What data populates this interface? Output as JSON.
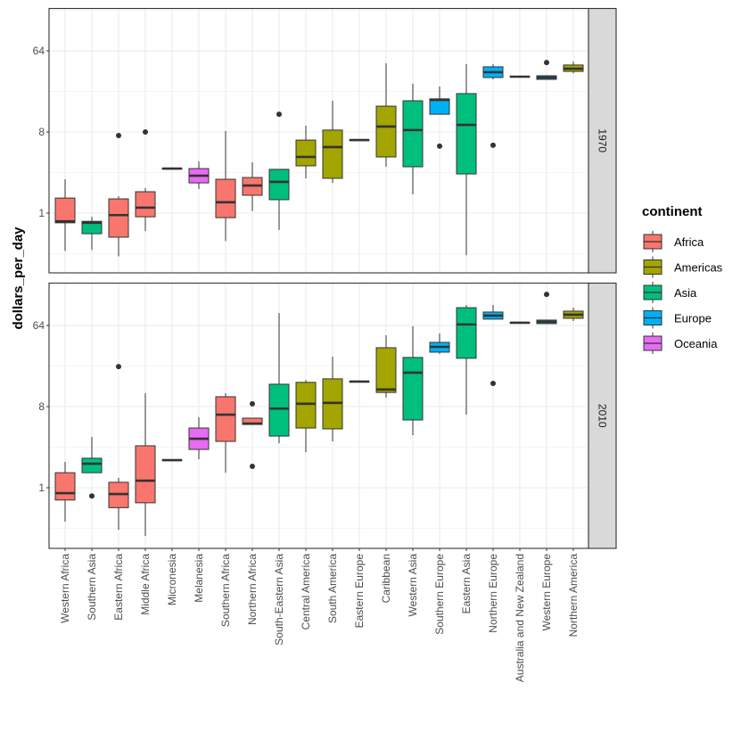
{
  "chart_data": {
    "type": "boxplot",
    "title": "",
    "xlabel": "",
    "ylabel": "dollars_per_day",
    "y_scale": "log2",
    "ylim": [
      0.22,
      190
    ],
    "y_ticks": [
      1,
      8,
      64
    ],
    "y_tick_labels": [
      "1",
      "8",
      "64"
    ],
    "grid": true,
    "legend": {
      "title": "continent",
      "placement": "right",
      "entries": [
        {
          "name": "Africa",
          "color": "#F8766D"
        },
        {
          "name": "Americas",
          "color": "#A3A500"
        },
        {
          "name": "Asia",
          "color": "#00BF7D"
        },
        {
          "name": "Europe",
          "color": "#00B0F6"
        },
        {
          "name": "Oceania",
          "color": "#E76BF3"
        }
      ]
    },
    "categories": [
      "Western Africa",
      "Southern Asia",
      "Eastern Africa",
      "Middle Africa",
      "Micronesia",
      "Melanesia",
      "Southern Africa",
      "Northern Africa",
      "South-Eastern Asia",
      "Central America",
      "South America",
      "Eastern Europe",
      "Caribbean",
      "Western Asia",
      "Southern Europe",
      "Eastern Asia",
      "Northern Europe",
      "Australia and New Zealand",
      "Western Europe",
      "Northern America"
    ],
    "category_continent": [
      "Africa",
      "Asia",
      "Africa",
      "Africa",
      "Oceania",
      "Oceania",
      "Africa",
      "Africa",
      "Asia",
      "Americas",
      "Americas",
      "Europe",
      "Americas",
      "Asia",
      "Europe",
      "Asia",
      "Europe",
      "Oceania",
      "Europe",
      "Americas"
    ],
    "panels": [
      {
        "label": "1970",
        "boxes": [
          {
            "low": 0.38,
            "q1": 0.78,
            "median": 0.81,
            "q3": 1.47,
            "high": 2.38,
            "outliers": []
          },
          {
            "low": 0.39,
            "q1": 0.59,
            "median": 0.78,
            "q3": 0.81,
            "high": 0.91,
            "outliers": []
          },
          {
            "low": 0.33,
            "q1": 0.54,
            "median": 0.95,
            "q3": 1.44,
            "high": 1.54,
            "outliers": [
              7.3
            ]
          },
          {
            "low": 0.63,
            "q1": 0.91,
            "median": 1.15,
            "q3": 1.73,
            "high": 1.9,
            "outliers": [
              8.0
            ]
          },
          {
            "low": 3.13,
            "q1": 3.13,
            "median": 3.13,
            "q3": 3.13,
            "high": 3.13,
            "outliers": []
          },
          {
            "low": 1.85,
            "q1": 2.17,
            "median": 2.61,
            "q3": 3.13,
            "high": 3.76,
            "outliers": []
          },
          {
            "low": 0.49,
            "q1": 0.89,
            "median": 1.32,
            "q3": 2.38,
            "high": 8.2,
            "outliers": []
          },
          {
            "low": 1.05,
            "q1": 1.58,
            "median": 2.03,
            "q3": 2.49,
            "high": 3.68,
            "outliers": []
          },
          {
            "low": 0.65,
            "q1": 1.41,
            "median": 2.23,
            "q3": 3.07,
            "high": 3.07,
            "outliers": [
              12.6
            ]
          },
          {
            "low": 2.44,
            "q1": 3.36,
            "median": 4.22,
            "q3": 6.5,
            "high": 9.4,
            "outliers": []
          },
          {
            "low": 2.17,
            "q1": 2.44,
            "median": 5.43,
            "q3": 8.4,
            "high": 17.8,
            "outliers": []
          },
          {
            "low": 6.5,
            "q1": 6.5,
            "median": 6.5,
            "q3": 6.5,
            "high": 6.5,
            "outliers": []
          },
          {
            "low": 3.28,
            "q1": 4.22,
            "median": 9.2,
            "q3": 15.5,
            "high": 46.5,
            "outliers": []
          },
          {
            "low": 1.62,
            "q1": 3.28,
            "median": 8.4,
            "q3": 17.8,
            "high": 27.6,
            "outliers": []
          },
          {
            "low": 12.6,
            "q1": 12.6,
            "median": 18.2,
            "q3": 18.7,
            "high": 25.7,
            "outliers": [
              5.56
            ]
          },
          {
            "low": 0.34,
            "q1": 2.73,
            "median": 9.6,
            "q3": 21.4,
            "high": 45.5,
            "outliers": []
          },
          {
            "low": 30.8,
            "q1": 32.3,
            "median": 37.0,
            "q3": 42.5,
            "high": 45.5,
            "outliers": [
              5.69
            ]
          },
          {
            "low": 33.0,
            "q1": 33.0,
            "median": 33.0,
            "q3": 33.0,
            "high": 33.0,
            "outliers": []
          },
          {
            "low": 30.8,
            "q1": 30.8,
            "median": 32.3,
            "q3": 33.8,
            "high": 33.8,
            "outliers": [
              47.5
            ]
          },
          {
            "low": 36.1,
            "q1": 37.8,
            "median": 40.5,
            "q3": 44.5,
            "high": 48.7,
            "outliers": []
          }
        ]
      },
      {
        "label": "2010",
        "boxes": [
          {
            "low": 0.42,
            "q1": 0.73,
            "median": 0.87,
            "q3": 1.47,
            "high": 1.94,
            "outliers": []
          },
          {
            "low": 1.47,
            "q1": 1.47,
            "median": 1.85,
            "q3": 2.13,
            "high": 3.68,
            "outliers": [
              0.81
            ]
          },
          {
            "low": 0.34,
            "q1": 0.6,
            "median": 0.85,
            "q3": 1.15,
            "high": 1.29,
            "outliers": [
              22.3
            ]
          },
          {
            "low": 0.29,
            "q1": 0.68,
            "median": 1.2,
            "q3": 2.93,
            "high": 11.3,
            "outliers": []
          },
          {
            "low": 2.03,
            "q1": 2.03,
            "median": 2.03,
            "q3": 2.03,
            "high": 2.03,
            "outliers": []
          },
          {
            "low": 2.08,
            "q1": 2.67,
            "median": 3.51,
            "q3": 4.62,
            "high": 6.1,
            "outliers": []
          },
          {
            "low": 1.47,
            "q1": 3.28,
            "median": 6.5,
            "q3": 10.3,
            "high": 11.3,
            "outliers": []
          },
          {
            "low": 5.06,
            "q1": 5.06,
            "median": 5.18,
            "q3": 5.95,
            "high": 5.95,
            "outliers": [
              8.6,
              1.73
            ]
          },
          {
            "low": 3.13,
            "q1": 3.76,
            "median": 7.6,
            "q3": 14.2,
            "high": 88,
            "outliers": []
          },
          {
            "low": 2.49,
            "q1": 4.62,
            "median": 8.6,
            "q3": 14.9,
            "high": 15.8,
            "outliers": []
          },
          {
            "low": 3.28,
            "q1": 4.52,
            "median": 8.8,
            "q3": 16.3,
            "high": 28.8,
            "outliers": []
          },
          {
            "low": 15.2,
            "q1": 15.2,
            "median": 15.2,
            "q3": 15.2,
            "high": 15.2,
            "outliers": []
          },
          {
            "low": 10.1,
            "q1": 11.5,
            "median": 12.4,
            "q3": 36.2,
            "high": 49.8,
            "outliers": []
          },
          {
            "low": 3.85,
            "q1": 5.68,
            "median": 19.1,
            "q3": 28.2,
            "high": 62.8,
            "outliers": []
          },
          {
            "low": 30.8,
            "q1": 32.3,
            "median": 37.0,
            "q3": 41.5,
            "high": 52.3,
            "outliers": []
          },
          {
            "low": 6.5,
            "q1": 27.6,
            "median": 65.7,
            "q3": 101,
            "high": 108,
            "outliers": []
          },
          {
            "low": 75.3,
            "q1": 75.3,
            "median": 82.4,
            "q3": 90.3,
            "high": 108,
            "outliers": [
              14.5
            ]
          },
          {
            "low": 68.7,
            "q1": 68.7,
            "median": 68.7,
            "q3": 68.7,
            "high": 68.7,
            "outliers": []
          },
          {
            "low": 67.1,
            "q1": 67.1,
            "median": 70.2,
            "q3": 73.5,
            "high": 73.5,
            "outliers": [
              142
            ]
          },
          {
            "low": 71.8,
            "q1": 76.9,
            "median": 84.3,
            "q3": 92.4,
            "high": 101,
            "outliers": []
          }
        ]
      }
    ]
  }
}
